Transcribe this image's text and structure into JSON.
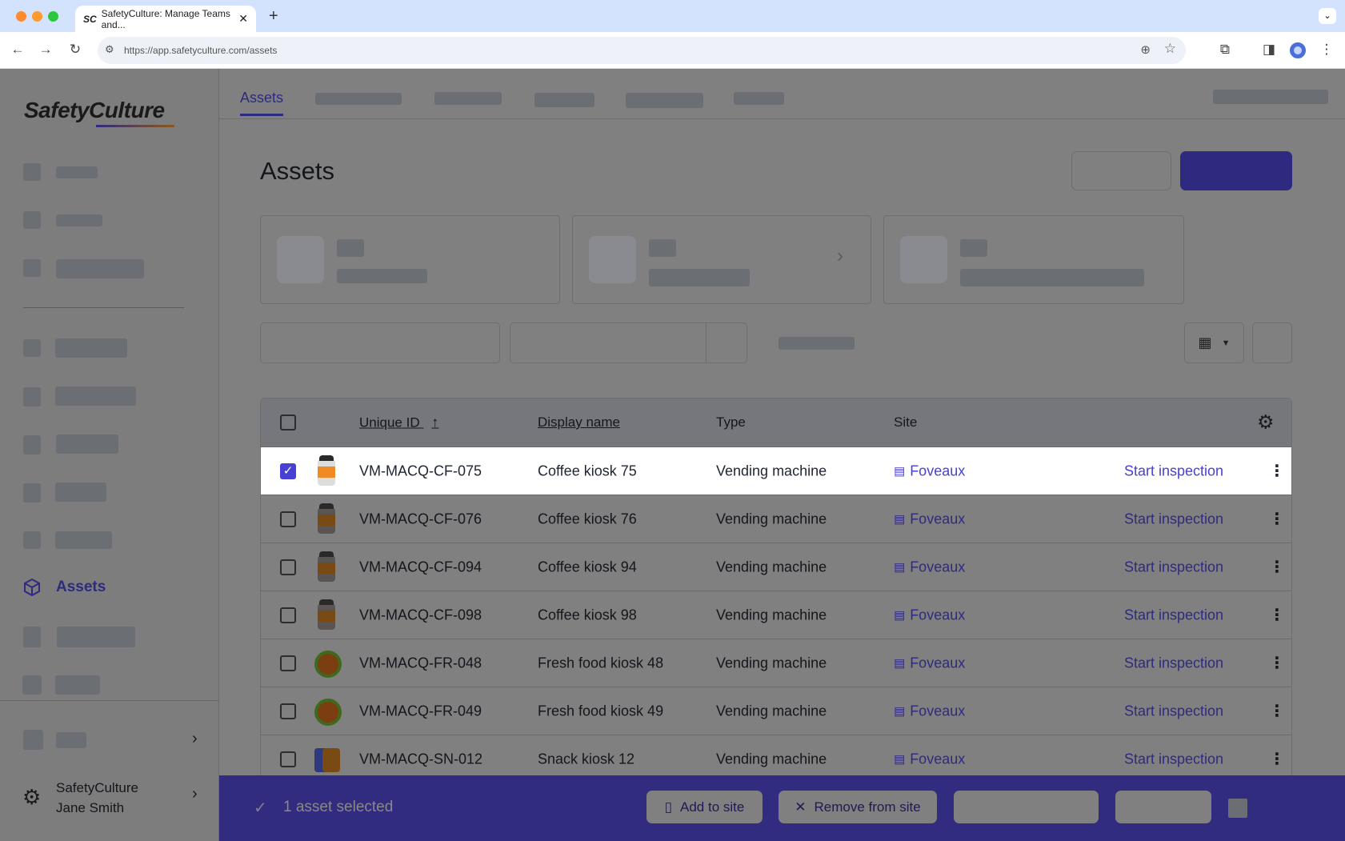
{
  "browser": {
    "tab_title": "SafetyCulture: Manage Teams and...",
    "tab_favicon": "SC",
    "url": "https://app.safetyculture.com/assets"
  },
  "sidebar": {
    "logo": "SafetyCulture",
    "active_item": "Assets",
    "org_name": "SafetyCulture",
    "user_name": "Jane Smith"
  },
  "main": {
    "active_tab": "Assets",
    "page_title": "Assets"
  },
  "table": {
    "columns": {
      "unique_id": "Unique ID",
      "display_name": "Display name",
      "type": "Type",
      "site": "Site"
    },
    "sort": {
      "column": "Unique ID",
      "direction": "ascending"
    },
    "rows": [
      {
        "id": "VM-MACQ-CF-075",
        "name": "Coffee kiosk 75",
        "type": "Vending machine",
        "site": "Foveaux",
        "action": "Start inspection",
        "icon": "coffee",
        "selected": true
      },
      {
        "id": "VM-MACQ-CF-076",
        "name": "Coffee kiosk 76",
        "type": "Vending machine",
        "site": "Foveaux",
        "action": "Start inspection",
        "icon": "coffee",
        "selected": false
      },
      {
        "id": "VM-MACQ-CF-094",
        "name": "Coffee kiosk 94",
        "type": "Vending machine",
        "site": "Foveaux",
        "action": "Start inspection",
        "icon": "coffee",
        "selected": false
      },
      {
        "id": "VM-MACQ-CF-098",
        "name": "Coffee kiosk 98",
        "type": "Vending machine",
        "site": "Foveaux",
        "action": "Start inspection",
        "icon": "coffee",
        "selected": false
      },
      {
        "id": "VM-MACQ-FR-048",
        "name": "Fresh food kiosk 48",
        "type": "Vending machine",
        "site": "Foveaux",
        "action": "Start inspection",
        "icon": "food",
        "selected": false
      },
      {
        "id": "VM-MACQ-FR-049",
        "name": "Fresh food kiosk 49",
        "type": "Vending machine",
        "site": "Foveaux",
        "action": "Start inspection",
        "icon": "food",
        "selected": false
      },
      {
        "id": "VM-MACQ-SN-012",
        "name": "Snack kiosk 12",
        "type": "Vending machine",
        "site": "Foveaux",
        "action": "Start inspection",
        "icon": "snack",
        "selected": false
      }
    ]
  },
  "bulk_bar": {
    "selected_text": "1 asset selected",
    "add_to_site": "Add to site",
    "remove_from_site": "Remove from site"
  },
  "colors": {
    "primary": "#4740d4",
    "bulk_bar": "#322c80",
    "overlay": "#808080"
  }
}
